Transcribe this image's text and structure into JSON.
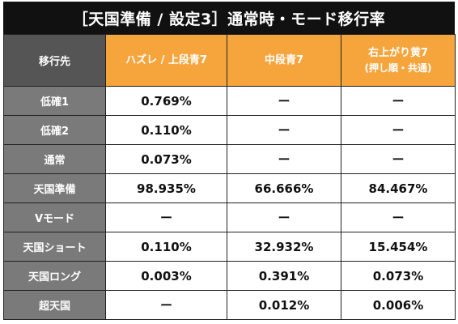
{
  "title": "［天国準備 / 設定3］通常時・モード移行率",
  "header": {
    "row_label": "移行先",
    "columns": [
      {
        "line1": "ハズレ / 上段青7",
        "line2": ""
      },
      {
        "line1": "中段青7",
        "line2": ""
      },
      {
        "line1": "右上がり黄7",
        "line2": "(押し順・共通)"
      }
    ]
  },
  "rows": [
    {
      "label": "低確1",
      "values": [
        "0.769%",
        "ー",
        "ー"
      ]
    },
    {
      "label": "低確2",
      "values": [
        "0.110%",
        "ー",
        "ー"
      ]
    },
    {
      "label": "通常",
      "values": [
        "0.073%",
        "ー",
        "ー"
      ]
    },
    {
      "label": "天国準備",
      "values": [
        "98.935%",
        "66.666%",
        "84.467%"
      ]
    },
    {
      "label": "Vモード",
      "values": [
        "ー",
        "ー",
        "ー"
      ]
    },
    {
      "label": "天国ショート",
      "values": [
        "0.110%",
        "32.932%",
        "15.454%"
      ]
    },
    {
      "label": "天国ロング",
      "values": [
        "0.003%",
        "0.391%",
        "0.073%"
      ]
    },
    {
      "label": "超天国",
      "values": [
        "ー",
        "0.012%",
        "0.006%"
      ]
    }
  ]
}
